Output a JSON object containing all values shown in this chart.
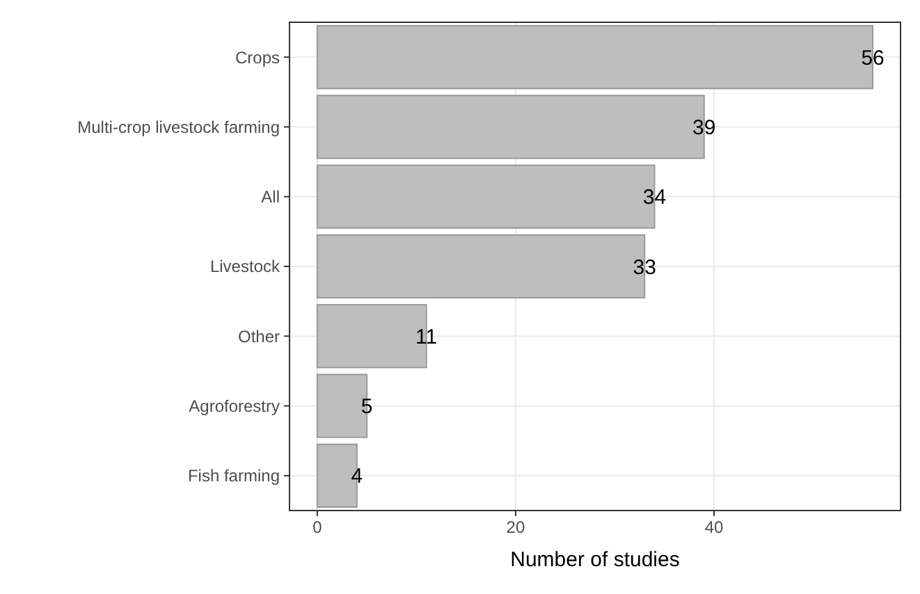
{
  "chart_data": {
    "type": "bar",
    "orientation": "horizontal",
    "xlabel": "Number of studies",
    "categories": [
      "Crops",
      "Multi-crop livestock farming",
      "All",
      "Livestock",
      "Other",
      "Agroforestry",
      "Fish farming"
    ],
    "values": [
      56,
      39,
      34,
      33,
      11,
      5,
      4
    ],
    "color": "#bebebe",
    "xlim": [
      -2.8,
      58.8
    ],
    "xticks": [
      0,
      20,
      40
    ],
    "grid": true,
    "data_labels": true
  }
}
